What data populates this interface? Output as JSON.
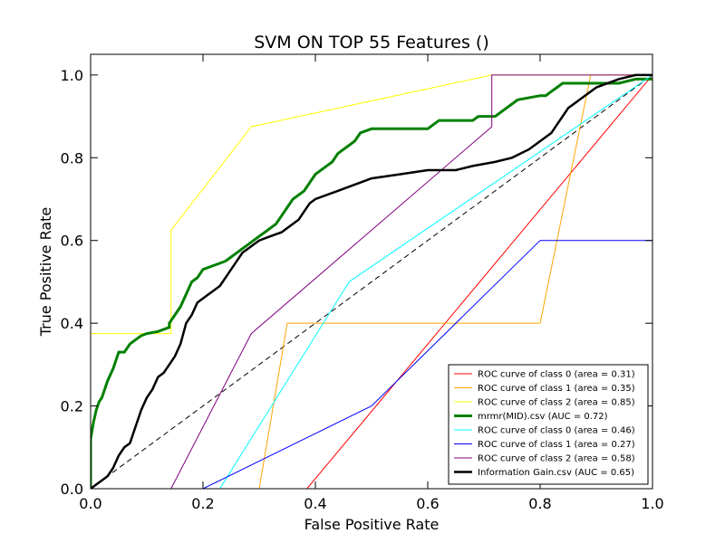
{
  "chart_data": {
    "type": "line",
    "title": "SVM ON TOP 55 Features ()",
    "xlabel": "False Positive Rate",
    "ylabel": "True Positive Rate",
    "xlim": [
      0.0,
      1.0
    ],
    "ylim": [
      0.0,
      1.05
    ],
    "xticks": [
      0.0,
      0.2,
      0.4,
      0.6,
      0.8,
      1.0
    ],
    "yticks": [
      0.0,
      0.2,
      0.4,
      0.6,
      0.8,
      1.0
    ],
    "xtick_labels": [
      "0.0",
      "0.2",
      "0.4",
      "0.6",
      "0.8",
      "1.0"
    ],
    "ytick_labels": [
      "0.0",
      "0.2",
      "0.4",
      "0.6",
      "0.8",
      "1.0"
    ],
    "grid": false,
    "legend_position": "bottom-right",
    "diagonal": {
      "x": [
        0,
        1
      ],
      "y": [
        0,
        1
      ],
      "color": "#000000",
      "style": "dashed"
    },
    "series": [
      {
        "name": "ROC curve of class 0 (area = 0.31)",
        "color": "#ff0000",
        "width": 1,
        "x": [
          0,
          0.385,
          1.0
        ],
        "y": [
          0,
          0,
          1.0
        ]
      },
      {
        "name": "ROC curve of class 1 (area = 0.35)",
        "color": "#ffa500",
        "width": 1,
        "x": [
          0,
          0.3,
          0.35,
          0.8,
          0.89,
          1.0
        ],
        "y": [
          0,
          0,
          0.4,
          0.4,
          1.0,
          1.0
        ]
      },
      {
        "name": "ROC curve of class 2 (area = 0.85)",
        "color": "#ffff00",
        "width": 1,
        "x": [
          0,
          0.143,
          0.143,
          0.286,
          0.714,
          1.0
        ],
        "y": [
          0.375,
          0.375,
          0.625,
          0.875,
          1.0,
          1.0
        ]
      },
      {
        "name": "mrmr(MID).csv (AUC = 0.72)",
        "color": "#008000",
        "width": 3,
        "x": [
          0,
          0,
          0.005,
          0.01,
          0.015,
          0.02,
          0.025,
          0.03,
          0.04,
          0.045,
          0.05,
          0.06,
          0.065,
          0.07,
          0.08,
          0.09,
          0.1,
          0.12,
          0.14,
          0.14,
          0.15,
          0.16,
          0.17,
          0.18,
          0.19,
          0.2,
          0.22,
          0.24,
          0.25,
          0.26,
          0.27,
          0.28,
          0.29,
          0.3,
          0.31,
          0.33,
          0.34,
          0.35,
          0.36,
          0.38,
          0.39,
          0.4,
          0.42,
          0.43,
          0.44,
          0.45,
          0.47,
          0.48,
          0.5,
          0.52,
          0.55,
          0.6,
          0.61,
          0.62,
          0.64,
          0.66,
          0.68,
          0.69,
          0.72,
          0.74,
          0.75,
          0.76,
          0.8,
          0.81,
          0.82,
          0.83,
          0.84,
          0.87,
          0.9,
          0.94,
          0.97,
          1.0
        ],
        "y": [
          0,
          0.12,
          0.16,
          0.19,
          0.21,
          0.22,
          0.24,
          0.26,
          0.29,
          0.31,
          0.33,
          0.33,
          0.34,
          0.35,
          0.36,
          0.37,
          0.375,
          0.38,
          0.39,
          0.4,
          0.42,
          0.44,
          0.47,
          0.5,
          0.51,
          0.53,
          0.54,
          0.55,
          0.56,
          0.57,
          0.58,
          0.59,
          0.6,
          0.61,
          0.62,
          0.64,
          0.66,
          0.68,
          0.7,
          0.72,
          0.74,
          0.76,
          0.78,
          0.79,
          0.81,
          0.82,
          0.84,
          0.86,
          0.87,
          0.87,
          0.87,
          0.87,
          0.88,
          0.89,
          0.89,
          0.89,
          0.89,
          0.9,
          0.9,
          0.92,
          0.93,
          0.94,
          0.95,
          0.95,
          0.96,
          0.97,
          0.98,
          0.98,
          0.98,
          0.98,
          0.99,
          0.99
        ]
      },
      {
        "name": "ROC curve of class 0 (area = 0.46)",
        "color": "#00ffff",
        "width": 1,
        "x": [
          0,
          0.23,
          0.46,
          1.0
        ],
        "y": [
          0,
          0,
          0.5,
          1.0
        ]
      },
      {
        "name": "ROC curve of class 1 (area = 0.27)",
        "color": "#0000ff",
        "width": 1,
        "x": [
          0,
          0.2,
          0.5,
          0.8,
          1.0,
          1.0
        ],
        "y": [
          0,
          0,
          0.2,
          0.6,
          0.6,
          1.0
        ]
      },
      {
        "name": "ROC curve of class 2 (area = 0.58)",
        "color": "#800080",
        "width": 1,
        "x": [
          0,
          0.143,
          0.286,
          0.714,
          0.714,
          1.0
        ],
        "y": [
          0,
          0,
          0.375,
          0.875,
          1.0,
          1.0
        ]
      },
      {
        "name": "Information Gain.csv (AUC = 0.65)",
        "color": "#000000",
        "width": 2.5,
        "x": [
          0,
          0.01,
          0.02,
          0.03,
          0.04,
          0.05,
          0.06,
          0.07,
          0.08,
          0.09,
          0.1,
          0.11,
          0.12,
          0.13,
          0.14,
          0.15,
          0.16,
          0.17,
          0.18,
          0.19,
          0.2,
          0.21,
          0.22,
          0.23,
          0.24,
          0.25,
          0.26,
          0.27,
          0.28,
          0.29,
          0.3,
          0.32,
          0.34,
          0.36,
          0.37,
          0.38,
          0.39,
          0.4,
          0.42,
          0.44,
          0.46,
          0.48,
          0.5,
          0.55,
          0.6,
          0.65,
          0.68,
          0.72,
          0.75,
          0.78,
          0.8,
          0.82,
          0.83,
          0.84,
          0.85,
          0.87,
          0.9,
          0.94,
          0.97,
          1.0
        ],
        "y": [
          0,
          0.01,
          0.02,
          0.03,
          0.05,
          0.08,
          0.1,
          0.11,
          0.15,
          0.19,
          0.22,
          0.24,
          0.27,
          0.28,
          0.3,
          0.32,
          0.35,
          0.4,
          0.42,
          0.45,
          0.46,
          0.47,
          0.48,
          0.49,
          0.51,
          0.53,
          0.55,
          0.57,
          0.58,
          0.59,
          0.6,
          0.61,
          0.62,
          0.64,
          0.65,
          0.67,
          0.69,
          0.7,
          0.71,
          0.72,
          0.73,
          0.74,
          0.75,
          0.76,
          0.77,
          0.77,
          0.78,
          0.79,
          0.8,
          0.82,
          0.84,
          0.86,
          0.88,
          0.9,
          0.92,
          0.94,
          0.97,
          0.99,
          1.0,
          1.0
        ]
      }
    ]
  }
}
